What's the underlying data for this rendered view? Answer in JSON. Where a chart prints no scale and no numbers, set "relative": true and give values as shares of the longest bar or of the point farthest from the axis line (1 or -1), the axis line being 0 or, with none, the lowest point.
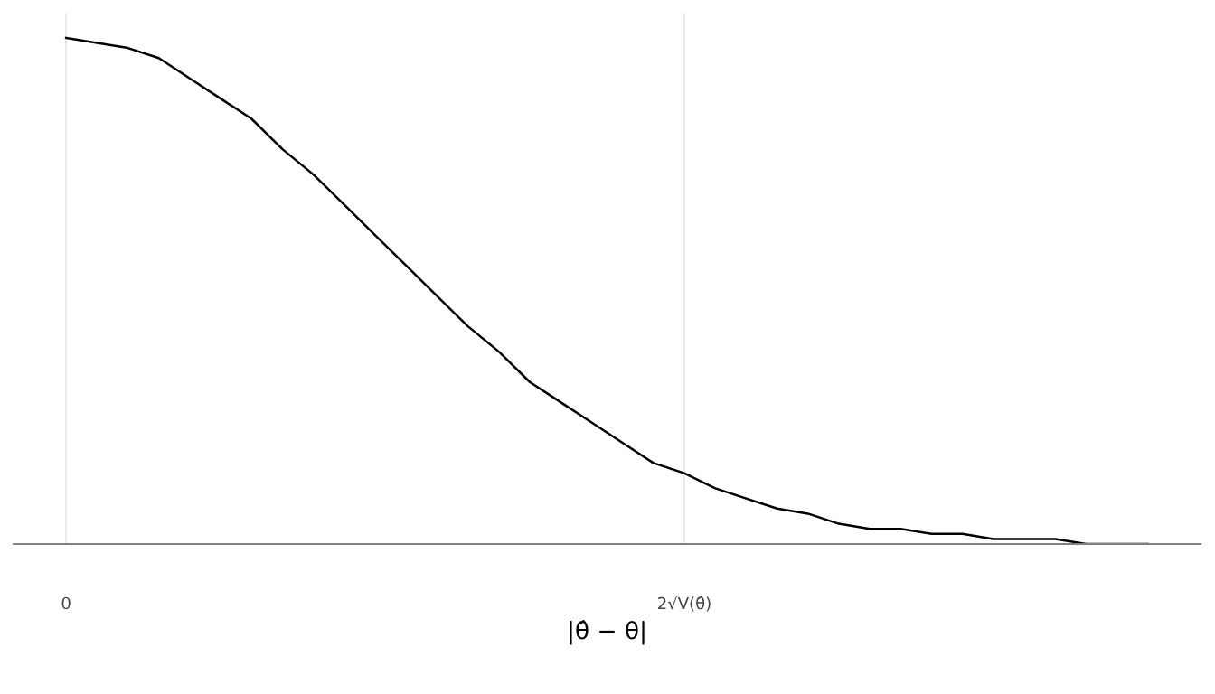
{
  "chart_data": {
    "type": "line",
    "relative": true,
    "xlabel": "|θ̂ − θ|",
    "x": [
      0,
      0.1,
      0.2,
      0.3,
      0.4,
      0.5,
      0.6,
      0.7,
      0.8,
      0.9,
      1.0,
      1.1,
      1.2,
      1.3,
      1.4,
      1.5,
      1.6,
      1.7,
      1.8,
      1.9,
      2.0,
      2.1,
      2.2,
      2.3,
      2.4,
      2.5,
      2.6,
      2.7,
      2.8,
      2.9,
      3.0,
      3.1,
      3.2,
      3.3,
      3.4,
      3.5
    ],
    "series": [
      {
        "color": "#000000",
        "values": [
          1.0,
          0.99,
          0.98,
          0.96,
          0.92,
          0.88,
          0.84,
          0.78,
          0.73,
          0.67,
          0.61,
          0.55,
          0.49,
          0.43,
          0.38,
          0.32,
          0.28,
          0.24,
          0.2,
          0.16,
          0.14,
          0.11,
          0.09,
          0.07,
          0.06,
          0.04,
          0.03,
          0.03,
          0.02,
          0.02,
          0.01,
          0.01,
          0.01,
          0.0,
          0.0,
          0.0
        ]
      }
    ],
    "xlim": [
      -0.17,
      3.67
    ],
    "xticks": [
      0,
      {
        "value": 2,
        "label": "2√V(θ̂)"
      }
    ],
    "grid": "x",
    "legend": false,
    "marker": "none",
    "line_style": "solid"
  }
}
